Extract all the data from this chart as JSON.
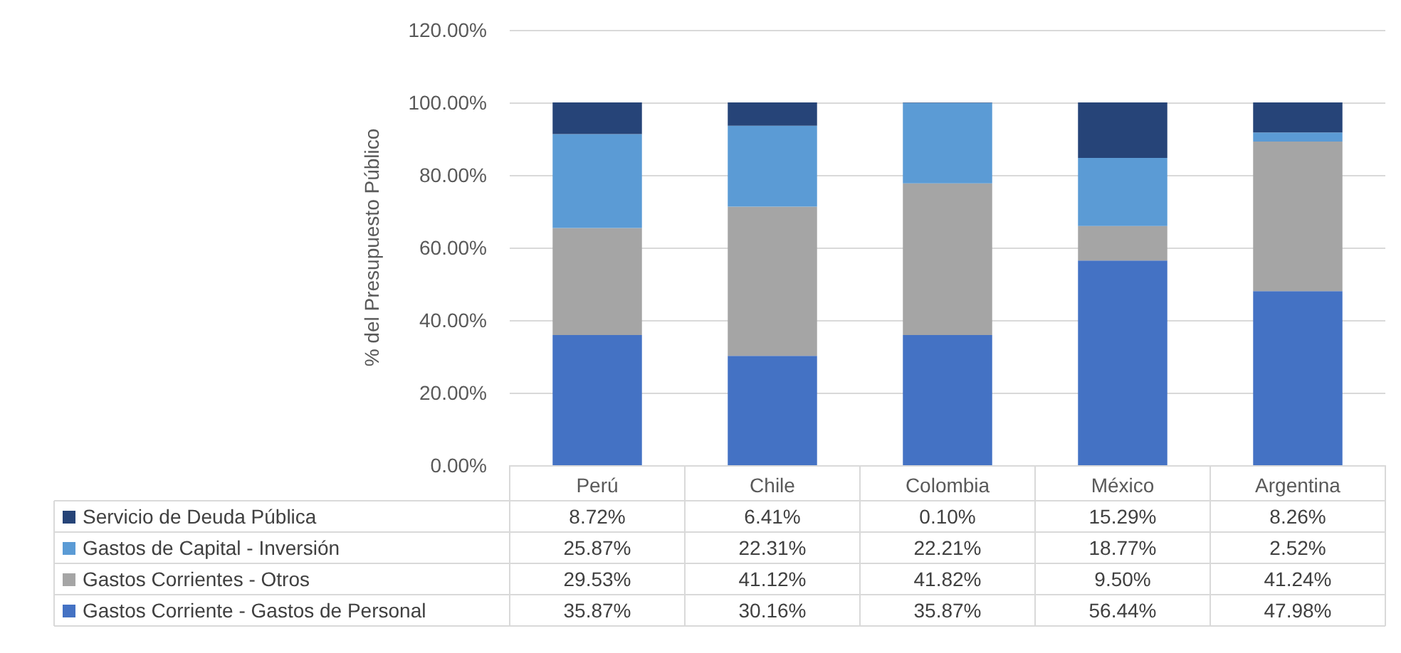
{
  "chart_data": {
    "type": "bar",
    "stacked": true,
    "ylabel": "% del Presupuesto Público",
    "categories": [
      "Perú",
      "Chile",
      "Colombia",
      "México",
      "Argentina"
    ],
    "series": [
      {
        "name": "Gastos Corriente - Gastos de Personal",
        "color": "#4472c4",
        "values": [
          35.87,
          30.16,
          35.87,
          56.44,
          47.98
        ],
        "value_labels": [
          "35.87%",
          "30.16%",
          "35.87%",
          "56.44%",
          "47.98%"
        ]
      },
      {
        "name": "Gastos Corrientes - Otros",
        "color": "#a5a5a5",
        "values": [
          29.53,
          41.12,
          41.82,
          9.5,
          41.24
        ],
        "value_labels": [
          "29.53%",
          "41.12%",
          "41.82%",
          "9.50%",
          "41.24%"
        ]
      },
      {
        "name": "Gastos de Capital - Inversión",
        "color": "#5b9bd5",
        "values": [
          25.87,
          22.31,
          22.21,
          18.77,
          2.52
        ],
        "value_labels": [
          "25.87%",
          "22.31%",
          "22.21%",
          "18.77%",
          "2.52%"
        ]
      },
      {
        "name": "Servicio de Deuda Pública",
        "color": "#264478",
        "values": [
          8.72,
          6.41,
          0.1,
          15.29,
          8.26
        ],
        "value_labels": [
          "8.72%",
          "6.41%",
          "0.10%",
          "15.29%",
          "8.26%"
        ]
      }
    ],
    "ylim": [
      0,
      120
    ],
    "yticks": [
      {
        "value": 0,
        "label": "0.00%"
      },
      {
        "value": 20,
        "label": "20.00%"
      },
      {
        "value": 40,
        "label": "40.00%"
      },
      {
        "value": 60,
        "label": "60.00%"
      },
      {
        "value": 80,
        "label": "80.00%"
      },
      {
        "value": 100,
        "label": "100.00%"
      },
      {
        "value": 120,
        "label": "120.00%"
      }
    ],
    "grid": "y",
    "legend": "bottom"
  }
}
